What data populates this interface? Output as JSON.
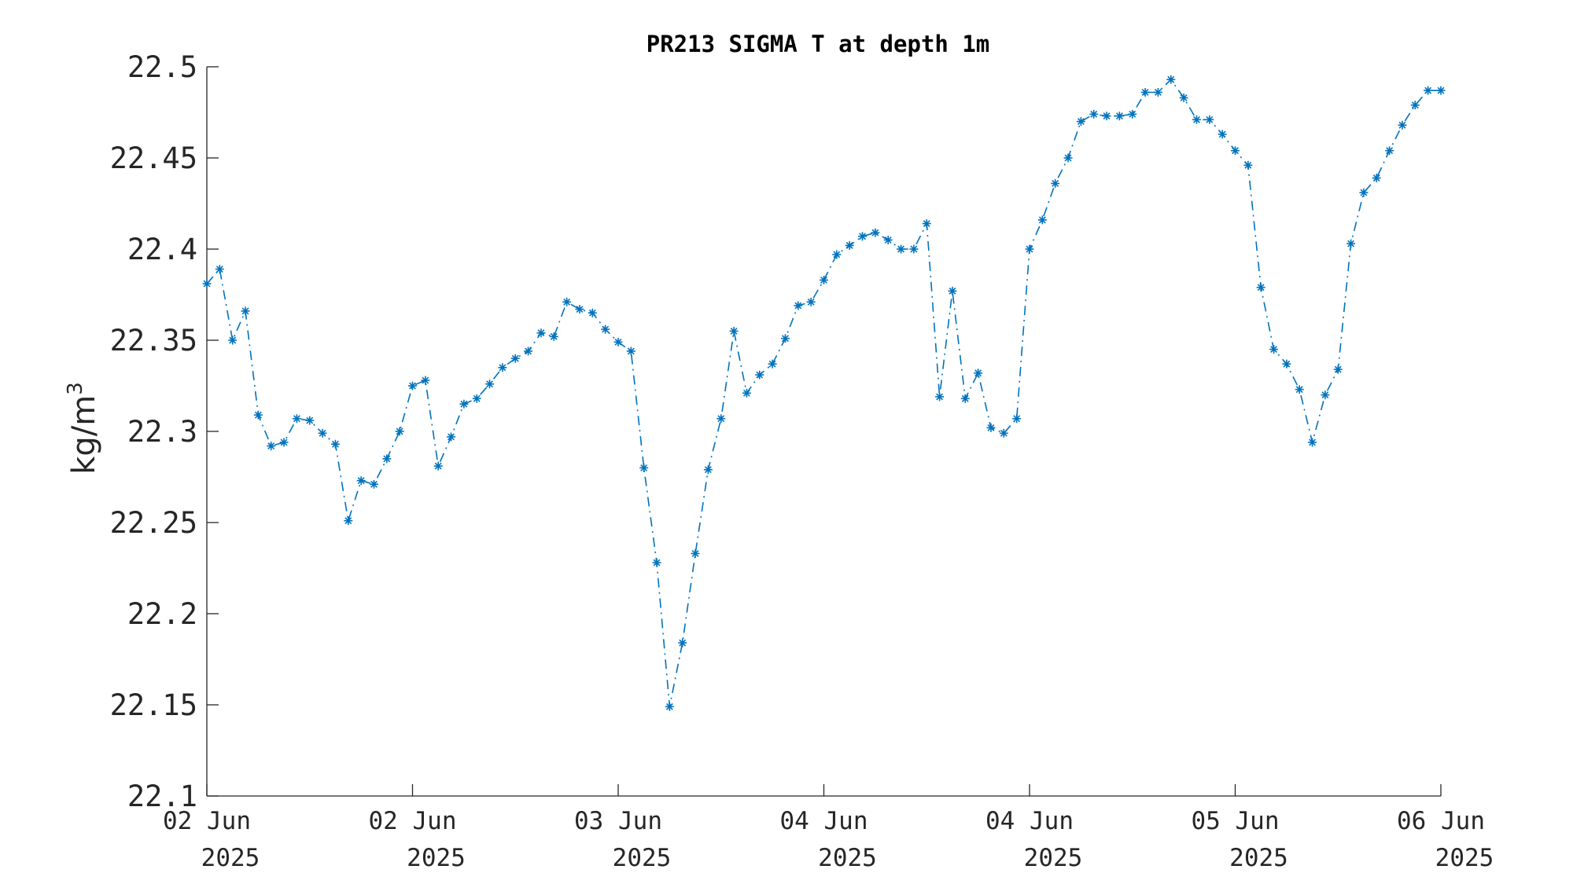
{
  "chart_data": {
    "type": "line",
    "title": "PR213 SIGMA T at depth 1m",
    "xlabel": "",
    "ylabel": "kg/m",
    "ylabel_superscript": "3",
    "ylim": [
      22.1,
      22.5
    ],
    "yticks": [
      22.1,
      22.15,
      22.2,
      22.25,
      22.3,
      22.35,
      22.4,
      22.45,
      22.5
    ],
    "ytick_labels": [
      "22.1",
      "22.15",
      "22.2",
      "22.25",
      "22.3",
      "22.35",
      "22.4",
      "22.45",
      "22.5"
    ],
    "xlim": [
      0,
      96
    ],
    "xticks": [
      0,
      16,
      32,
      48,
      64,
      80,
      96
    ],
    "xtick_labels": [
      {
        "day": "02 Jun",
        "year": "2025"
      },
      {
        "day": "02 Jun",
        "year": "2025"
      },
      {
        "day": "03 Jun",
        "year": "2025"
      },
      {
        "day": "04 Jun",
        "year": "2025"
      },
      {
        "day": "04 Jun",
        "year": "2025"
      },
      {
        "day": "05 Jun",
        "year": "2025"
      },
      {
        "day": "06 Jun",
        "year": "2025"
      }
    ],
    "grid": false,
    "color": "#0072BD",
    "line_style": "dash-dot",
    "marker": "asterisk",
    "series": [
      {
        "x": [
          0,
          1,
          2,
          3,
          4,
          5,
          6,
          7,
          8,
          9,
          10,
          11,
          12,
          13,
          14,
          15,
          16,
          17,
          18,
          19,
          20,
          21,
          22,
          23,
          24,
          25,
          26,
          27,
          28,
          29,
          30,
          31,
          32,
          33,
          34,
          35,
          36,
          37,
          38,
          39,
          40,
          41,
          42,
          43,
          44,
          45,
          46,
          47,
          48,
          49,
          50,
          51,
          52,
          53,
          54,
          55,
          56,
          57,
          58,
          59,
          60,
          61,
          62,
          63,
          64,
          65,
          66,
          67,
          68,
          69,
          70,
          71,
          72,
          73,
          74,
          75,
          76,
          77,
          78,
          79,
          80,
          81,
          82,
          83,
          84,
          85,
          86,
          87,
          88,
          89,
          90,
          91,
          92,
          93,
          94,
          95,
          96
        ],
        "values": [
          22.381,
          22.389,
          22.35,
          22.366,
          22.309,
          22.292,
          22.294,
          22.307,
          22.306,
          22.299,
          22.293,
          22.251,
          22.273,
          22.271,
          22.285,
          22.3,
          22.325,
          22.328,
          22.281,
          22.297,
          22.315,
          22.318,
          22.326,
          22.335,
          22.34,
          22.344,
          22.354,
          22.352,
          22.371,
          22.367,
          22.365,
          22.356,
          22.349,
          22.344,
          22.28,
          22.228,
          22.149,
          22.184,
          22.233,
          22.279,
          22.307,
          22.355,
          22.321,
          22.331,
          22.337,
          22.351,
          22.369,
          22.371,
          22.383,
          22.397,
          22.402,
          22.407,
          22.409,
          22.405,
          22.4,
          22.4,
          22.414,
          22.319,
          22.377,
          22.318,
          22.332,
          22.302,
          22.299,
          22.307,
          22.4,
          22.416,
          22.436,
          22.45,
          22.47,
          22.474,
          22.473,
          22.473,
          22.474,
          22.486,
          22.486,
          22.493,
          22.483,
          22.471,
          22.471,
          22.463,
          22.454,
          22.446,
          22.379,
          22.345,
          22.337,
          22.323,
          22.294,
          22.32,
          22.334,
          22.403,
          22.431,
          22.439,
          22.454,
          22.468,
          22.479,
          22.487,
          22.487
        ]
      }
    ]
  }
}
